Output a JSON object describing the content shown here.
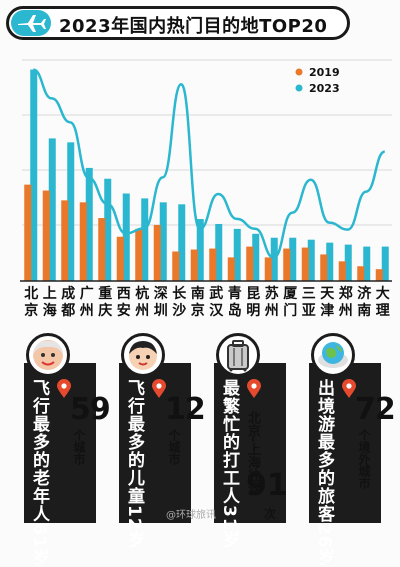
{
  "title": "2023年国内热门目的地TOP20",
  "colors": {
    "series2019": "#e9782a",
    "series2023": "#2bb7cf",
    "dark": "#1c1c1c",
    "pin": "#e64a2e"
  },
  "chart_data": {
    "type": "bar",
    "categories": [
      "北京",
      "上海",
      "成都",
      "广州",
      "重庆",
      "西安",
      "杭州",
      "深圳",
      "长沙",
      "南京",
      "武汉",
      "青岛",
      "昆明",
      "苏州",
      "厦门",
      "三亚",
      "天津",
      "郑州",
      "济南",
      "大理"
    ],
    "series": [
      {
        "name": "2019",
        "values": [
          98,
          92,
          82,
          80,
          64,
          45,
          53,
          57,
          30,
          32,
          33,
          24,
          35,
          24,
          33,
          34,
          27,
          20,
          15,
          12
        ]
      },
      {
        "name": "2023",
        "values": [
          215,
          145,
          141,
          115,
          104,
          89,
          84,
          80,
          78,
          63,
          58,
          53,
          48,
          44,
          44,
          42,
          39,
          37,
          35,
          35
        ]
      }
    ],
    "overlay_line": {
      "series": "2023",
      "values": [
        215,
        145,
        141,
        115,
        104,
        89,
        84,
        80,
        78,
        63,
        58,
        53,
        48,
        44,
        44,
        42,
        39,
        37,
        35,
        35
      ]
    },
    "legend": {
      "placement": "top-right",
      "labels": [
        "2019",
        "2023"
      ]
    },
    "grid": "horizontal",
    "ylim": [
      0,
      240
    ]
  },
  "cards": [
    {
      "title": "飞行最多的老年人",
      "age": "61岁",
      "number": "59",
      "unit": "个城市",
      "icon": "elderly-face-icon"
    },
    {
      "title": "飞行最多的儿童",
      "age": "12岁",
      "number": "12",
      "unit": "个城市",
      "icon": "child-face-icon"
    },
    {
      "title": "最繁忙的打工人",
      "age": "31岁",
      "number": "91",
      "unit": "次",
      "extra": "北京-上海往返",
      "icon": "suitcase-icon"
    },
    {
      "title": "出境游最多的旅客",
      "age": "26岁",
      "number": "72",
      "unit": "个境外城市",
      "icon": "globe-icon"
    }
  ],
  "watermark": "@环球旅讯"
}
